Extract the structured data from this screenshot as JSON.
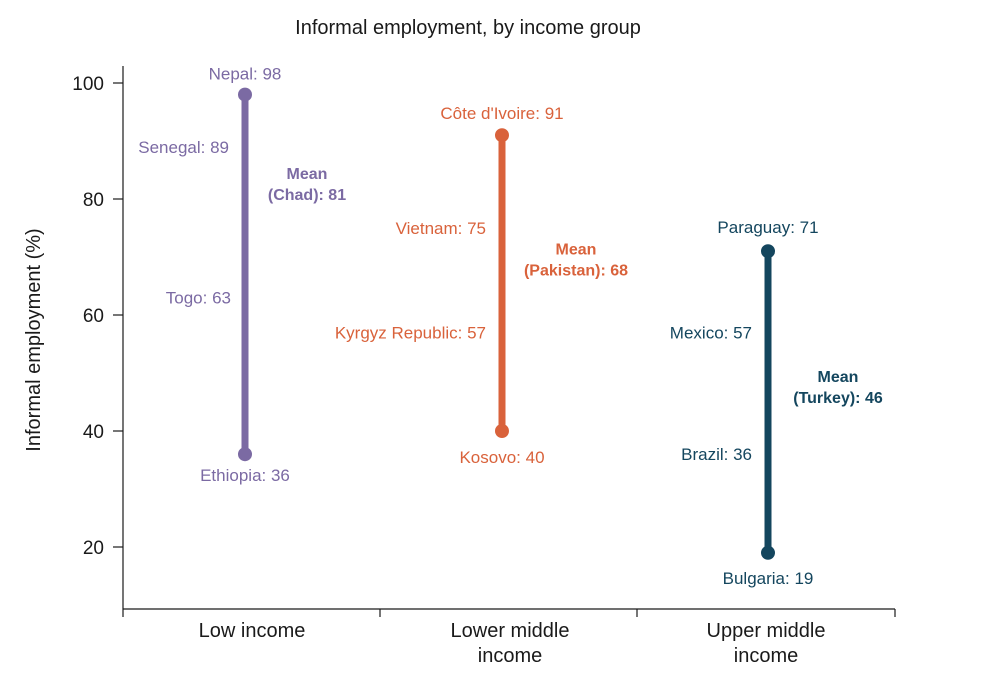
{
  "chart_data": {
    "type": "range",
    "title": "Informal employment, by income group",
    "ylabel": "Informal employment (%)",
    "xlabel": "",
    "ylim": [
      10,
      100
    ],
    "yticks": [
      20,
      40,
      60,
      80,
      100
    ],
    "categories": [
      {
        "label_lines": [
          "Low income"
        ]
      },
      {
        "label_lines": [
          "Lower middle",
          "income"
        ]
      },
      {
        "label_lines": [
          "Upper middle",
          "income"
        ]
      }
    ],
    "series": [
      {
        "category": "Low income",
        "color": "#7b6aa3",
        "range": [
          36,
          98
        ],
        "points": [
          {
            "label": "Nepal: 98",
            "value": 98,
            "marker": true
          },
          {
            "label": "Senegal: 89",
            "value": 89,
            "marker": false
          },
          {
            "label": "Togo: 63",
            "value": 63,
            "marker": false
          },
          {
            "label": "Ethiopia: 36",
            "value": 36,
            "marker": true
          }
        ],
        "mean": {
          "lines": [
            "Mean",
            "(Chad): 81"
          ],
          "value": 81
        }
      },
      {
        "category": "Lower middle income",
        "color": "#d9623b",
        "range": [
          40,
          91
        ],
        "points": [
          {
            "label": "Côte d'Ivoire: 91",
            "value": 91,
            "marker": true
          },
          {
            "label": "Vietnam: 75",
            "value": 75,
            "marker": false
          },
          {
            "label": "Kyrgyz Republic: 57",
            "value": 57,
            "marker": false
          },
          {
            "label": "Kosovo: 40",
            "value": 40,
            "marker": true
          }
        ],
        "mean": {
          "lines": [
            "Mean",
            "(Pakistan): 68"
          ],
          "value": 68
        }
      },
      {
        "category": "Upper middle income",
        "color": "#14465e",
        "range": [
          19,
          71
        ],
        "points": [
          {
            "label": "Paraguay: 71",
            "value": 71,
            "marker": true
          },
          {
            "label": "Mexico: 57",
            "value": 57,
            "marker": false
          },
          {
            "label": "Brazil: 36",
            "value": 36,
            "marker": false
          },
          {
            "label": "Bulgaria: 19",
            "value": 19,
            "marker": true
          }
        ],
        "mean": {
          "lines": [
            "Mean",
            "(Turkey): 46"
          ],
          "value": 46
        }
      }
    ],
    "grid": false,
    "legend": "none"
  }
}
